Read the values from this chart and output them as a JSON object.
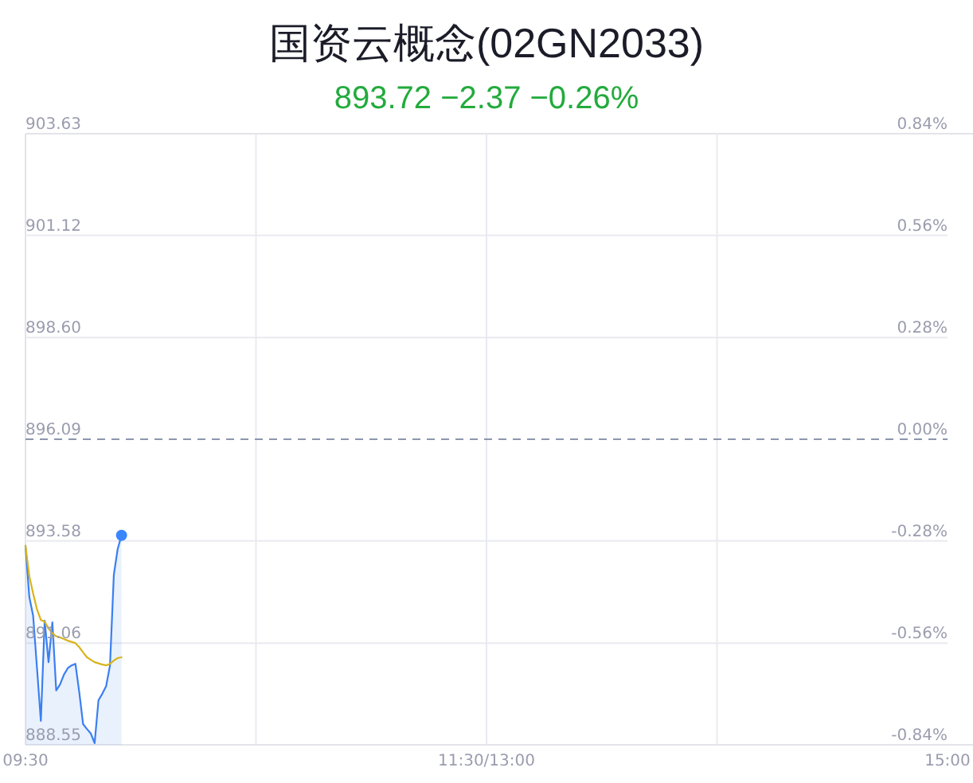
{
  "chart_data": {
    "type": "area",
    "title": "国资云概念(02GN2033)",
    "subtitle": "893.72 −2.37 −0.26%",
    "categories": [
      "09:30",
      null,
      null,
      null,
      null,
      null,
      null,
      null,
      null,
      null,
      null,
      null,
      null,
      null,
      null,
      null,
      null,
      null,
      null,
      null,
      null,
      null,
      null,
      null,
      null,
      null,
      null,
      null,
      null,
      null,
      null,
      null,
      null,
      null,
      null,
      null,
      null,
      null,
      null,
      null,
      null,
      null,
      null,
      null,
      null,
      null,
      null,
      null,
      null,
      null,
      null,
      null,
      null,
      null,
      null,
      null,
      null,
      null,
      null,
      null,
      null,
      null,
      null,
      null,
      null,
      null,
      null,
      null,
      null,
      null,
      null,
      null,
      null,
      null,
      null,
      null,
      null,
      null,
      null,
      null,
      null,
      null,
      null,
      null,
      null,
      null,
      null,
      null,
      null,
      null,
      null,
      null,
      null,
      null,
      null,
      null,
      null,
      null,
      null,
      null,
      null,
      null,
      null,
      null,
      null,
      null,
      null,
      null,
      null,
      null,
      null,
      null,
      null,
      null,
      null,
      null,
      null,
      null,
      null,
      null,
      "11:30/13:00",
      null,
      null,
      null,
      null,
      null,
      null,
      null,
      null,
      null,
      null,
      null,
      null,
      null,
      null,
      null,
      null,
      null,
      null,
      null,
      null,
      null,
      null,
      null,
      null,
      null,
      null,
      null,
      null,
      null,
      null,
      null,
      null,
      null,
      null,
      null,
      null,
      null,
      null,
      null,
      null,
      null,
      null,
      null,
      null,
      null,
      null,
      null,
      null,
      null,
      null,
      null,
      null,
      null,
      null,
      null,
      null,
      null,
      null,
      null,
      null,
      null,
      null,
      null,
      null,
      null,
      null,
      null,
      null,
      null,
      null,
      null,
      null,
      null,
      null,
      null,
      null,
      null,
      null,
      null,
      null,
      null,
      null,
      null,
      null,
      null,
      null,
      null,
      null,
      null,
      null,
      null,
      null,
      null,
      null,
      null,
      null,
      null,
      null,
      null,
      null,
      null,
      null,
      null,
      null,
      null,
      null,
      null,
      null,
      null,
      null,
      null,
      null,
      null,
      null,
      null,
      null,
      null,
      null,
      null,
      "15:00"
    ],
    "series": [
      {
        "color": "#3a7ff0",
        "values": [
          893.46,
          892.2,
          891.73,
          890.44,
          889.14,
          891.61,
          890.59,
          891.57,
          889.89,
          890.04,
          890.28,
          890.44,
          890.51,
          890.55,
          889.85,
          889.06,
          888.94,
          888.83,
          888.59,
          889.65,
          889.81,
          890.0,
          890.51,
          892.75,
          893.38,
          893.72,
          null,
          null,
          null,
          null,
          null,
          null,
          null,
          null,
          null,
          null,
          null,
          null,
          null,
          null,
          null,
          null,
          null,
          null,
          null,
          null,
          null,
          null,
          null,
          null,
          null,
          null,
          null,
          null,
          null,
          null,
          null,
          null,
          null,
          null,
          null,
          null,
          null,
          null,
          null,
          null,
          null,
          null,
          null,
          null,
          null,
          null,
          null,
          null,
          null,
          null,
          null,
          null,
          null,
          null,
          null,
          null,
          null,
          null,
          null,
          null,
          null,
          null,
          null,
          null,
          null,
          null,
          null,
          null,
          null,
          null,
          null,
          null,
          null,
          null,
          null,
          null,
          null,
          null,
          null,
          null,
          null,
          null,
          null,
          null,
          null,
          null,
          null,
          null,
          null,
          null,
          null,
          null,
          null,
          null,
          null,
          null,
          null,
          null,
          null,
          null,
          null,
          null,
          null,
          null,
          null,
          null,
          null,
          null,
          null,
          null,
          null,
          null,
          null,
          null,
          null,
          null,
          null,
          null,
          null,
          null,
          null,
          null,
          null,
          null,
          null,
          null,
          null,
          null,
          null,
          null,
          null,
          null,
          null,
          null,
          null,
          null,
          null,
          null,
          null,
          null,
          null,
          null,
          null,
          null,
          null,
          null,
          null,
          null,
          null,
          null,
          null,
          null,
          null,
          null,
          null,
          null,
          null,
          null,
          null,
          null,
          null,
          null,
          null,
          null,
          null,
          null,
          null,
          null,
          null,
          null,
          null,
          null,
          null,
          null,
          null,
          null,
          null,
          null,
          null,
          null,
          null,
          null,
          null,
          null,
          null,
          null,
          null,
          null,
          null,
          null,
          null,
          null,
          null,
          null,
          null,
          null,
          null,
          null,
          null,
          null,
          null,
          null,
          null,
          null,
          null,
          null,
          null,
          null,
          null,
          null,
          null,
          null,
          null,
          null,
          null
        ]
      },
      {
        "type": "line",
        "color": "#d8b41c",
        "values": [
          893.46,
          892.71,
          892.28,
          891.89,
          891.63,
          891.59,
          891.42,
          891.3,
          891.23,
          891.2,
          891.16,
          891.12,
          891.09,
          891.06,
          890.96,
          890.83,
          890.71,
          890.65,
          890.59,
          890.56,
          890.53,
          890.51,
          890.55,
          890.63,
          890.69,
          890.71,
          null,
          null,
          null,
          null,
          null,
          null,
          null,
          null,
          null,
          null,
          null,
          null,
          null,
          null,
          null,
          null,
          null,
          null,
          null,
          null,
          null,
          null,
          null,
          null,
          null,
          null,
          null,
          null,
          null,
          null,
          null,
          null,
          null,
          null,
          null,
          null,
          null,
          null,
          null,
          null,
          null,
          null,
          null,
          null,
          null,
          null,
          null,
          null,
          null,
          null,
          null,
          null,
          null,
          null,
          null,
          null,
          null,
          null,
          null,
          null,
          null,
          null,
          null,
          null,
          null,
          null,
          null,
          null,
          null,
          null,
          null,
          null,
          null,
          null,
          null,
          null,
          null,
          null,
          null,
          null,
          null,
          null,
          null,
          null,
          null,
          null,
          null,
          null,
          null,
          null,
          null,
          null,
          null,
          null,
          null,
          null,
          null,
          null,
          null,
          null,
          null,
          null,
          null,
          null,
          null,
          null,
          null,
          null,
          null,
          null,
          null,
          null,
          null,
          null,
          null,
          null,
          null,
          null,
          null,
          null,
          null,
          null,
          null,
          null,
          null,
          null,
          null,
          null,
          null,
          null,
          null,
          null,
          null,
          null,
          null,
          null,
          null,
          null,
          null,
          null,
          null,
          null,
          null,
          null,
          null,
          null,
          null,
          null,
          null,
          null,
          null,
          null,
          null,
          null,
          null,
          null,
          null,
          null,
          null,
          null,
          null,
          null,
          null,
          null,
          null,
          null,
          null,
          null,
          null,
          null,
          null,
          null,
          null,
          null,
          null,
          null,
          null,
          null,
          null,
          null,
          null,
          null,
          null,
          null,
          null,
          null,
          null,
          null,
          null,
          null,
          null,
          null,
          null,
          null,
          null,
          null,
          null,
          null,
          null,
          null,
          null,
          null,
          null,
          null,
          null,
          null,
          null,
          null,
          null,
          null,
          null,
          null,
          null,
          null,
          null
        ]
      },
      {
        "type": "scatter",
        "color": "#3a86ff",
        "values": [
          null,
          null,
          null,
          null,
          null,
          null,
          null,
          null,
          null,
          null,
          null,
          null,
          null,
          null,
          null,
          null,
          null,
          null,
          null,
          null,
          null,
          null,
          null,
          null,
          null,
          893.72,
          null,
          null,
          null,
          null,
          null,
          null,
          null,
          null,
          null,
          null,
          null,
          null,
          null,
          null,
          null,
          null,
          null,
          null,
          null,
          null,
          null,
          null,
          null,
          null,
          null,
          null,
          null,
          null,
          null,
          null,
          null,
          null,
          null,
          null,
          null,
          null,
          null,
          null,
          null,
          null,
          null,
          null,
          null,
          null,
          null,
          null,
          null,
          null,
          null,
          null,
          null,
          null,
          null,
          null,
          null,
          null,
          null,
          null,
          null,
          null,
          null,
          null,
          null,
          null,
          null,
          null,
          null,
          null,
          null,
          null,
          null,
          null,
          null,
          null,
          null,
          null,
          null,
          null,
          null,
          null,
          null,
          null,
          null,
          null,
          null,
          null,
          null,
          null,
          null,
          null,
          null,
          null,
          null,
          null,
          null,
          null,
          null,
          null,
          null,
          null,
          null,
          null,
          null,
          null,
          null,
          null,
          null,
          null,
          null,
          null,
          null,
          null,
          null,
          null,
          null,
          null,
          null,
          null,
          null,
          null,
          null,
          null,
          null,
          null,
          null,
          null,
          null,
          null,
          null,
          null,
          null,
          null,
          null,
          null,
          null,
          null,
          null,
          null,
          null,
          null,
          null,
          null,
          null,
          null,
          null,
          null,
          null,
          null,
          null,
          null,
          null,
          null,
          null,
          null,
          null,
          null,
          null,
          null,
          null,
          null,
          null,
          null,
          null,
          null,
          null,
          null,
          null,
          null,
          null,
          null,
          null,
          null,
          null,
          null,
          null,
          null,
          null,
          null,
          null,
          null,
          null,
          null,
          null,
          null,
          null,
          null,
          null,
          null,
          null,
          null,
          null,
          null,
          null,
          null,
          null,
          null,
          null,
          null,
          null,
          null,
          null,
          null,
          null,
          null,
          null,
          null,
          null,
          null,
          null,
          null,
          null,
          null,
          null,
          null,
          null
        ]
      }
    ],
    "ylim": [
      888.55,
      903.63
    ],
    "yticks": [
      888.55,
      891.06,
      893.58,
      896.09,
      {
        "value": 898.6,
        "label": "898.60"
      },
      901.12,
      903.63
    ],
    "y2lim": [
      -0.84,
      0.84
    ],
    "y2ticks": [
      {
        "value": -0.84,
        "label": "-0.84%"
      },
      {
        "value": -0.56,
        "label": "-0.56%"
      },
      {
        "value": -0.28,
        "label": "-0.28%"
      },
      {
        "value": 0,
        "label": "0.00%"
      },
      {
        "value": 0.28,
        "label": "0.28%"
      },
      {
        "value": 0.56,
        "label": "0.56%"
      },
      {
        "value": 0.84,
        "label": "0.84%"
      }
    ],
    "ref_lines": [
      {
        "axis": "y",
        "value": 896.09,
        "color": "#8c96ad",
        "line_style": "dashed"
      }
    ],
    "grid": true
  }
}
